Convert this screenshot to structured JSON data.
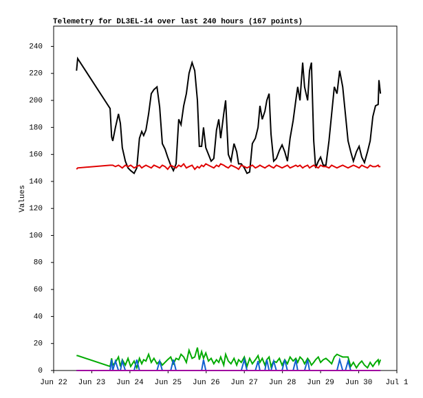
{
  "chart_data": {
    "type": "line",
    "title": "Telemetry for DL3EL-14 over last 240 hours (167 points)",
    "y_label": "Values",
    "xlim": [
      0,
      9
    ],
    "xticks": [
      {
        "value": 0,
        "label": "Jun 22"
      },
      {
        "value": 1,
        "label": "Jun 23"
      },
      {
        "value": 2,
        "label": "Jun 24"
      },
      {
        "value": 3,
        "label": "Jun 25"
      },
      {
        "value": 4,
        "label": "Jun 26"
      },
      {
        "value": 5,
        "label": "Jun 27"
      },
      {
        "value": 6,
        "label": "Jun 28"
      },
      {
        "value": 7,
        "label": "Jun 29"
      },
      {
        "value": 8,
        "label": "Jun 30"
      },
      {
        "value": 9,
        "label": "Jul 1"
      }
    ],
    "ylim": [
      0,
      255
    ],
    "yticks": [
      0,
      20,
      40,
      60,
      80,
      100,
      120,
      140,
      160,
      180,
      200,
      220,
      240
    ],
    "x": [
      0.6,
      0.63,
      1.48,
      1.52,
      1.55,
      1.62,
      1.7,
      1.75,
      1.8,
      1.88,
      1.95,
      2.02,
      2.11,
      2.18,
      2.25,
      2.31,
      2.36,
      2.42,
      2.49,
      2.56,
      2.63,
      2.71,
      2.78,
      2.85,
      2.92,
      2.99,
      3.07,
      3.14,
      3.21,
      3.28,
      3.34,
      3.41,
      3.48,
      3.55,
      3.63,
      3.7,
      3.77,
      3.82,
      3.88,
      3.93,
      3.99,
      4.06,
      4.13,
      4.2,
      4.27,
      4.33,
      4.38,
      4.46,
      4.51,
      4.58,
      4.65,
      4.73,
      4.8,
      4.85,
      4.92,
      5.0,
      5.07,
      5.14,
      5.21,
      5.29,
      5.36,
      5.41,
      5.47,
      5.54,
      5.59,
      5.65,
      5.7,
      5.77,
      5.84,
      5.92,
      5.99,
      6.06,
      6.13,
      6.2,
      6.28,
      6.35,
      6.4,
      6.46,
      6.53,
      6.58,
      6.66,
      6.71,
      6.76,
      6.82,
      6.87,
      6.94,
      7.0,
      7.07,
      7.14,
      7.22,
      7.29,
      7.36,
      7.43,
      7.5,
      7.58,
      7.65,
      7.72,
      7.79,
      7.86,
      7.94,
      8.01,
      8.08,
      8.15,
      8.23,
      8.3,
      8.37,
      8.44,
      8.51,
      8.53,
      8.57
    ],
    "series": [
      {
        "color": "#000000",
        "values": [
          222,
          231,
          194,
          173,
          170,
          180,
          190,
          183,
          165,
          155,
          150,
          148,
          146,
          150,
          172,
          177,
          174,
          178,
          190,
          205,
          208,
          210,
          195,
          168,
          164,
          158,
          152,
          148,
          153,
          186,
          182,
          196,
          205,
          220,
          228,
          222,
          200,
          166,
          166,
          180,
          165,
          160,
          155,
          157,
          178,
          186,
          172,
          190,
          200,
          160,
          155,
          168,
          162,
          153,
          153,
          150,
          146,
          147,
          168,
          172,
          180,
          196,
          186,
          192,
          200,
          205,
          175,
          155,
          157,
          163,
          167,
          162,
          155,
          172,
          185,
          200,
          210,
          200,
          228,
          210,
          200,
          222,
          228,
          170,
          150,
          155,
          158,
          152,
          152,
          170,
          190,
          210,
          205,
          222,
          210,
          190,
          170,
          162,
          155,
          162,
          166,
          158,
          154,
          162,
          170,
          188,
          196,
          197,
          215,
          205
        ]
      },
      {
        "color": "#e00000",
        "values": [
          149,
          150,
          152,
          152,
          152,
          151,
          152,
          151,
          150,
          152,
          151,
          152,
          150,
          151,
          152,
          150,
          151,
          152,
          151,
          150,
          152,
          151,
          150,
          152,
          151,
          149,
          152,
          151,
          150,
          152,
          151,
          153,
          150,
          151,
          152,
          149,
          151,
          150,
          152,
          151,
          153,
          152,
          151,
          150,
          152,
          151,
          153,
          152,
          151,
          150,
          152,
          151,
          150,
          149,
          152,
          151,
          150,
          151,
          152,
          150,
          151,
          152,
          151,
          150,
          151,
          152,
          151,
          150,
          152,
          151,
          150,
          151,
          152,
          150,
          151,
          152,
          151,
          152,
          150,
          151,
          152,
          150,
          151,
          152,
          151,
          150,
          152,
          151,
          151,
          150,
          152,
          151,
          150,
          151,
          152,
          151,
          150,
          151,
          152,
          151,
          150,
          152,
          151,
          150,
          152,
          151,
          151,
          152,
          151,
          151
        ]
      },
      {
        "color": "#00aa00",
        "values": [
          11,
          11,
          3,
          9,
          4,
          6,
          10,
          3,
          8,
          4,
          9,
          3,
          7,
          2,
          9,
          5,
          8,
          7,
          12,
          6,
          9,
          5,
          7,
          4,
          6,
          8,
          10,
          5,
          9,
          8,
          12,
          10,
          6,
          15,
          9,
          10,
          17,
          8,
          14,
          9,
          13,
          7,
          9,
          5,
          8,
          6,
          10,
          4,
          12,
          7,
          5,
          9,
          4,
          8,
          6,
          10,
          3,
          9,
          5,
          8,
          11,
          6,
          9,
          4,
          8,
          10,
          3,
          7,
          6,
          9,
          4,
          8,
          5,
          10,
          7,
          9,
          6,
          10,
          8,
          5,
          9,
          7,
          4,
          6,
          8,
          10,
          6,
          8,
          9,
          7,
          5,
          10,
          12,
          11,
          10,
          10,
          10,
          3,
          6,
          2,
          5,
          7,
          4,
          2,
          6,
          3,
          6,
          8,
          5,
          8
        ]
      },
      {
        "color": "#1060d0",
        "values": [
          0,
          0,
          0,
          8,
          0,
          7,
          0,
          0,
          7,
          0,
          0,
          0,
          0,
          8,
          0,
          0,
          0,
          0,
          0,
          0,
          0,
          0,
          7,
          0,
          0,
          0,
          0,
          8,
          0,
          0,
          0,
          0,
          0,
          0,
          0,
          0,
          0,
          0,
          0,
          8,
          0,
          0,
          0,
          0,
          0,
          0,
          0,
          0,
          0,
          0,
          0,
          0,
          0,
          0,
          0,
          8,
          0,
          0,
          0,
          0,
          7,
          0,
          0,
          0,
          8,
          0,
          0,
          7,
          0,
          0,
          0,
          8,
          0,
          0,
          0,
          8,
          0,
          0,
          0,
          0,
          8,
          0,
          0,
          0,
          0,
          0,
          0,
          0,
          0,
          0,
          0,
          0,
          0,
          8,
          0,
          0,
          7,
          0,
          0,
          0,
          0,
          0,
          0,
          0,
          0,
          0,
          0,
          0,
          0,
          0
        ]
      },
      {
        "color": "#a000a0",
        "values": [
          0,
          0,
          0,
          0,
          0,
          0,
          0,
          0,
          0,
          0,
          0,
          0,
          0,
          0,
          0,
          0,
          0,
          0,
          0,
          0,
          0,
          0,
          0,
          0,
          0,
          0,
          0,
          0,
          0,
          0,
          0,
          0,
          0,
          0,
          0,
          0,
          0,
          0,
          0,
          0,
          0,
          0,
          0,
          0,
          0,
          0,
          0,
          0,
          0,
          0,
          0,
          0,
          0,
          0,
          0,
          0,
          0,
          0,
          0,
          0,
          0,
          0,
          0,
          0,
          0,
          0,
          0,
          0,
          0,
          0,
          0,
          0,
          0,
          0,
          0,
          0,
          0,
          0,
          0,
          0,
          0,
          0,
          0,
          0,
          0,
          0,
          0,
          0,
          0,
          0,
          0,
          0,
          0,
          0,
          0,
          0,
          0,
          0,
          0,
          0,
          0,
          0,
          0,
          0,
          0,
          0,
          0,
          0,
          0,
          0
        ]
      }
    ]
  }
}
